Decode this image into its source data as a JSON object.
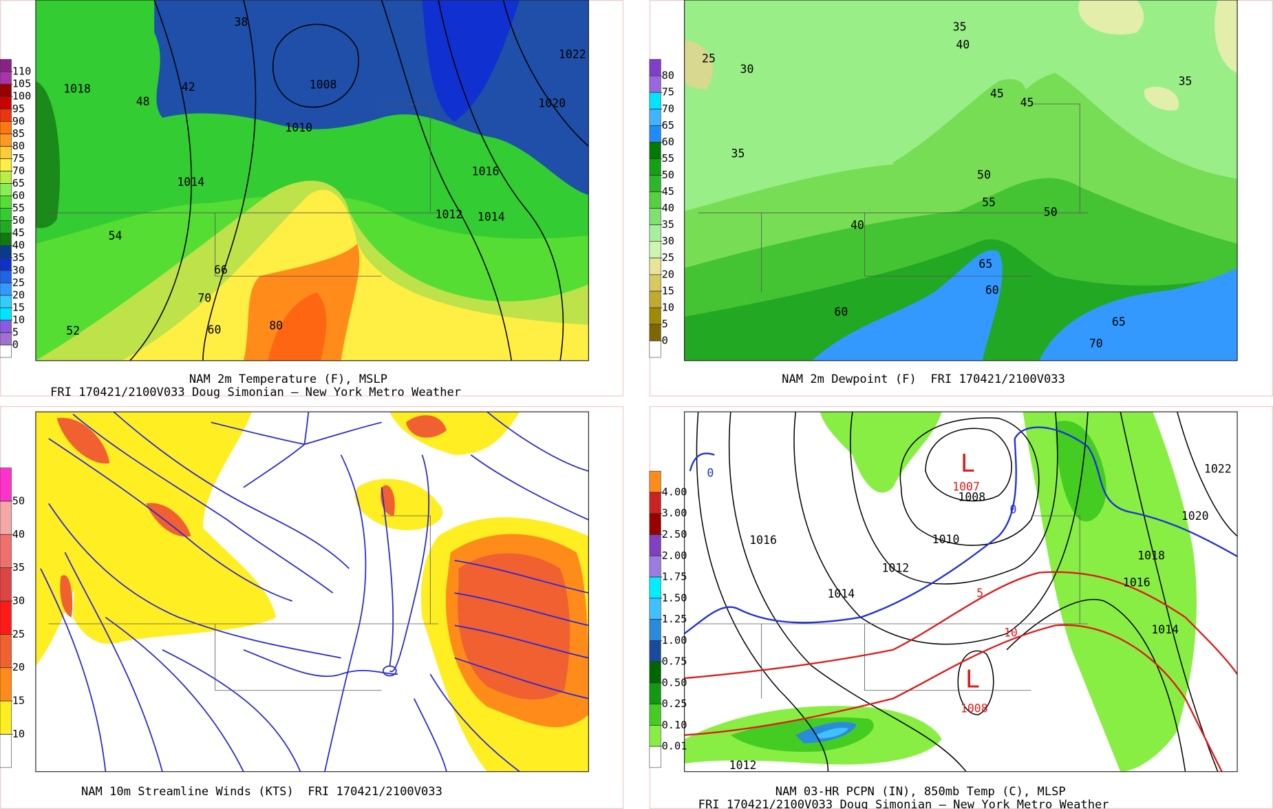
{
  "panels": [
    {
      "caption": [
        "NAM 2m Temperature (F), MSLP",
        "FRI 170421/2100V033 Doug Simonian — New York Metro Weather"
      ],
      "colorbar": {
        "levels": [
          0,
          5,
          10,
          15,
          20,
          25,
          30,
          35,
          40,
          45,
          50,
          55,
          60,
          65,
          70,
          75,
          80,
          85,
          90,
          95,
          100,
          105,
          110
        ],
        "colors": [
          "#ffffff",
          "#a070d0",
          "#8a5ae0",
          "#00e5ff",
          "#33ccff",
          "#3399ff",
          "#1e64e6",
          "#1030c8",
          "#0a3a8a",
          "#117711",
          "#22aa22",
          "#33cc33",
          "#55dd33",
          "#88ee55",
          "#bbee44",
          "#ffee44",
          "#ffcc33",
          "#ff9922",
          "#ff7711",
          "#ee3311",
          "#cc0000",
          "#990000",
          "#aa33aa",
          "#882288"
        ]
      },
      "map_labels": [
        1008,
        1010,
        1014,
        1016,
        1012,
        1014,
        1018,
        1022,
        1020,
        38,
        42,
        48,
        54,
        66,
        70,
        80,
        60,
        52
      ]
    },
    {
      "caption": [
        "NAM 2m Dewpoint (F)  FRI 170421/2100V033"
      ],
      "colorbar": {
        "levels": [
          0,
          5,
          10,
          15,
          20,
          25,
          30,
          35,
          40,
          45,
          50,
          55,
          60,
          65,
          70,
          75,
          80
        ],
        "colors": [
          "#ffffff",
          "#806600",
          "#a08a00",
          "#c0aa30",
          "#d8c860",
          "#e8e49a",
          "#ccf5b0",
          "#a6eea0",
          "#80e070",
          "#55d040",
          "#2ab82a",
          "#13a013",
          "#007a00",
          "#1e8cff",
          "#40b4ff",
          "#00e5ff",
          "#9966dd",
          "#7f3fc8"
        ]
      },
      "map_labels": [
        35,
        40,
        45,
        50,
        55,
        60,
        65,
        70,
        25,
        30,
        35,
        40,
        45,
        50,
        65,
        60,
        35
      ]
    },
    {
      "caption": [
        "NAM 10m Streamline Winds (KTS)  FRI 170421/2100V033"
      ],
      "colorbar": {
        "levels": [
          10,
          15,
          20,
          25,
          30,
          35,
          40,
          50
        ],
        "colors": [
          "#ffffff",
          "#ffee22",
          "#ff8c1a",
          "#f06030",
          "#ff1a1a",
          "#dd4444",
          "#f07070",
          "#f4a8a8",
          "#ff33cc"
        ]
      },
      "map_labels": []
    },
    {
      "caption": [
        "NAM 03-HR PCPN (IN), 850mb Temp (C), MLSP",
        "FRI 170421/2100V033 Doug Simonian — New York Metro Weather"
      ],
      "colorbar": {
        "levels": [
          {
            "value": 0.01,
            "label": "0.01"
          },
          {
            "value": 0.1,
            "label": "0.10"
          },
          {
            "value": 0.25,
            "label": "0.25"
          },
          {
            "value": 0.5,
            "label": "0.50"
          },
          {
            "value": 0.75,
            "label": "0.75"
          },
          {
            "value": 1,
            "label": "1.00"
          },
          {
            "value": 1.25,
            "label": "1.25"
          },
          {
            "value": 1.5,
            "label": "1.50"
          },
          {
            "value": 1.75,
            "label": "1.75"
          },
          {
            "value": 2,
            "label": "2.00"
          },
          {
            "value": 2.5,
            "label": "2.50"
          },
          {
            "value": 3,
            "label": "3.00"
          },
          {
            "value": 4,
            "label": "4.00"
          }
        ],
        "colors": [
          "#ffffff",
          "#88ee44",
          "#44cc22",
          "#119911",
          "#006600",
          "#1a4a9a",
          "#2a8adc",
          "#40c0ff",
          "#00eeff",
          "#9b7ce0",
          "#8040c0",
          "#990000",
          "#cc2222",
          "#ff8c1a"
        ]
      },
      "map_labels": [
        "L",
        1007,
        1008,
        1010,
        1012,
        1014,
        1016,
        1018,
        1020,
        1022,
        0,
        0,
        5,
        10,
        "L",
        1008,
        1016,
        1014,
        1012
      ]
    }
  ]
}
